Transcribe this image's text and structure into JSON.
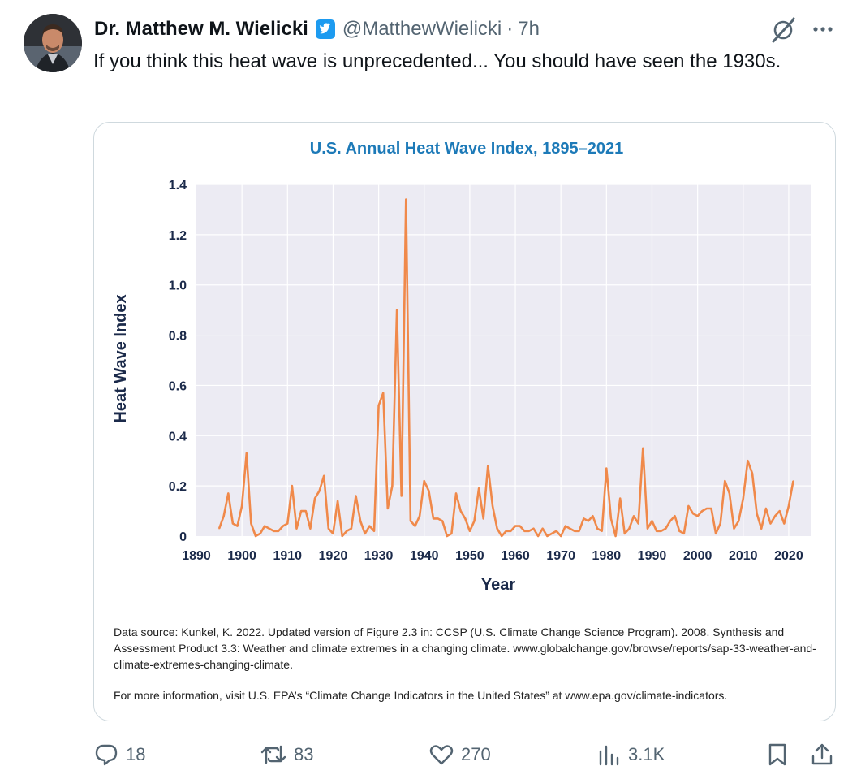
{
  "author": {
    "display_name": "Dr. Matthew M. Wielicki",
    "handle": "@MatthewWielicki",
    "separator": "·",
    "time": "7h"
  },
  "tweet": {
    "text": "If you think this heat wave is unprecedented... You should have seen the 1930s."
  },
  "actions": {
    "replies": "18",
    "retweets": "83",
    "likes": "270",
    "views": "3.1K"
  },
  "colors": {
    "verified": "#1d9bf0",
    "chart_title": "#1d7ab8",
    "axis_text": "#1b2a4a",
    "series": "#f0894a",
    "plot_bg": "#ecebf3",
    "grid": "#ffffff",
    "icon": "#536471"
  },
  "icons": [
    "verified-badge-icon",
    "grok-icon",
    "more-icon",
    "reply-icon",
    "retweet-icon",
    "like-icon",
    "views-icon",
    "bookmark-icon",
    "share-icon"
  ],
  "chart_data": {
    "type": "line",
    "title": "U.S. Annual Heat Wave Index, 1895–2021",
    "xlabel": "Year",
    "ylabel": "Heat Wave Index",
    "xlim": [
      1890,
      2025
    ],
    "ylim": [
      0,
      1.4
    ],
    "xticks": [
      1890,
      1900,
      1910,
      1920,
      1930,
      1940,
      1950,
      1960,
      1970,
      1980,
      1990,
      2000,
      2010,
      2020
    ],
    "yticks": [
      0,
      0.2,
      0.4,
      0.6,
      0.8,
      1.0,
      1.2,
      1.4
    ],
    "ytick_labels": [
      "0",
      "0.2",
      "0.4",
      "0.6",
      "0.8",
      "1.0",
      "1.2",
      "1.4"
    ],
    "grid": true,
    "series": [
      {
        "x": [
          1895,
          1896,
          1897,
          1898,
          1899,
          1900,
          1901,
          1902,
          1903,
          1904,
          1905,
          1906,
          1907,
          1908,
          1909,
          1910,
          1911,
          1912,
          1913,
          1914,
          1915,
          1916,
          1917,
          1918,
          1919,
          1920,
          1921,
          1922,
          1923,
          1924,
          1925,
          1926,
          1927,
          1928,
          1929,
          1930,
          1931,
          1932,
          1933,
          1934,
          1935,
          1936,
          1937,
          1938,
          1939,
          1940,
          1941,
          1942,
          1943,
          1944,
          1945,
          1946,
          1947,
          1948,
          1949,
          1950,
          1951,
          1952,
          1953,
          1954,
          1955,
          1956,
          1957,
          1958,
          1959,
          1960,
          1961,
          1962,
          1963,
          1964,
          1965,
          1966,
          1967,
          1968,
          1969,
          1970,
          1971,
          1972,
          1973,
          1974,
          1975,
          1976,
          1977,
          1978,
          1979,
          1980,
          1981,
          1982,
          1983,
          1984,
          1985,
          1986,
          1987,
          1988,
          1989,
          1990,
          1991,
          1992,
          1993,
          1994,
          1995,
          1996,
          1997,
          1998,
          1999,
          2000,
          2001,
          2002,
          2003,
          2004,
          2005,
          2006,
          2007,
          2008,
          2009,
          2010,
          2011,
          2012,
          2013,
          2014,
          2015,
          2016,
          2017,
          2018,
          2019,
          2020,
          2021
        ],
        "y": [
          0.03,
          0.08,
          0.17,
          0.05,
          0.04,
          0.12,
          0.33,
          0.05,
          0.0,
          0.01,
          0.04,
          0.03,
          0.02,
          0.02,
          0.04,
          0.05,
          0.2,
          0.03,
          0.1,
          0.1,
          0.03,
          0.15,
          0.18,
          0.24,
          0.03,
          0.01,
          0.14,
          0.0,
          0.02,
          0.03,
          0.16,
          0.06,
          0.01,
          0.04,
          0.02,
          0.52,
          0.57,
          0.11,
          0.2,
          0.9,
          0.16,
          1.34,
          0.06,
          0.04,
          0.08,
          0.22,
          0.18,
          0.07,
          0.07,
          0.06,
          0.0,
          0.01,
          0.17,
          0.1,
          0.07,
          0.02,
          0.06,
          0.19,
          0.07,
          0.28,
          0.12,
          0.03,
          0.0,
          0.02,
          0.02,
          0.04,
          0.04,
          0.02,
          0.02,
          0.03,
          0.0,
          0.03,
          0.0,
          0.01,
          0.02,
          0.0,
          0.04,
          0.03,
          0.02,
          0.02,
          0.07,
          0.06,
          0.08,
          0.03,
          0.02,
          0.27,
          0.07,
          0.0,
          0.15,
          0.01,
          0.03,
          0.08,
          0.05,
          0.35,
          0.03,
          0.06,
          0.02,
          0.02,
          0.03,
          0.06,
          0.08,
          0.02,
          0.01,
          0.12,
          0.09,
          0.08,
          0.1,
          0.11,
          0.11,
          0.01,
          0.05,
          0.22,
          0.17,
          0.03,
          0.06,
          0.15,
          0.3,
          0.25,
          0.09,
          0.03,
          0.11,
          0.05,
          0.08,
          0.1,
          0.05,
          0.12,
          0.22
        ]
      }
    ],
    "source_note": "Data source: Kunkel, K. 2022. Updated version of Figure 2.3 in: CCSP (U.S. Climate Change Science Program). 2008. Synthesis and Assessment Product 3.3: Weather and climate extremes in a changing climate. www.globalchange.gov/browse/reports/sap-33-weather-and-climate-extremes-changing-climate.",
    "more_info": "For more information, visit U.S. EPA’s “Climate Change Indicators in the United States” at www.epa.gov/climate-indicators."
  }
}
